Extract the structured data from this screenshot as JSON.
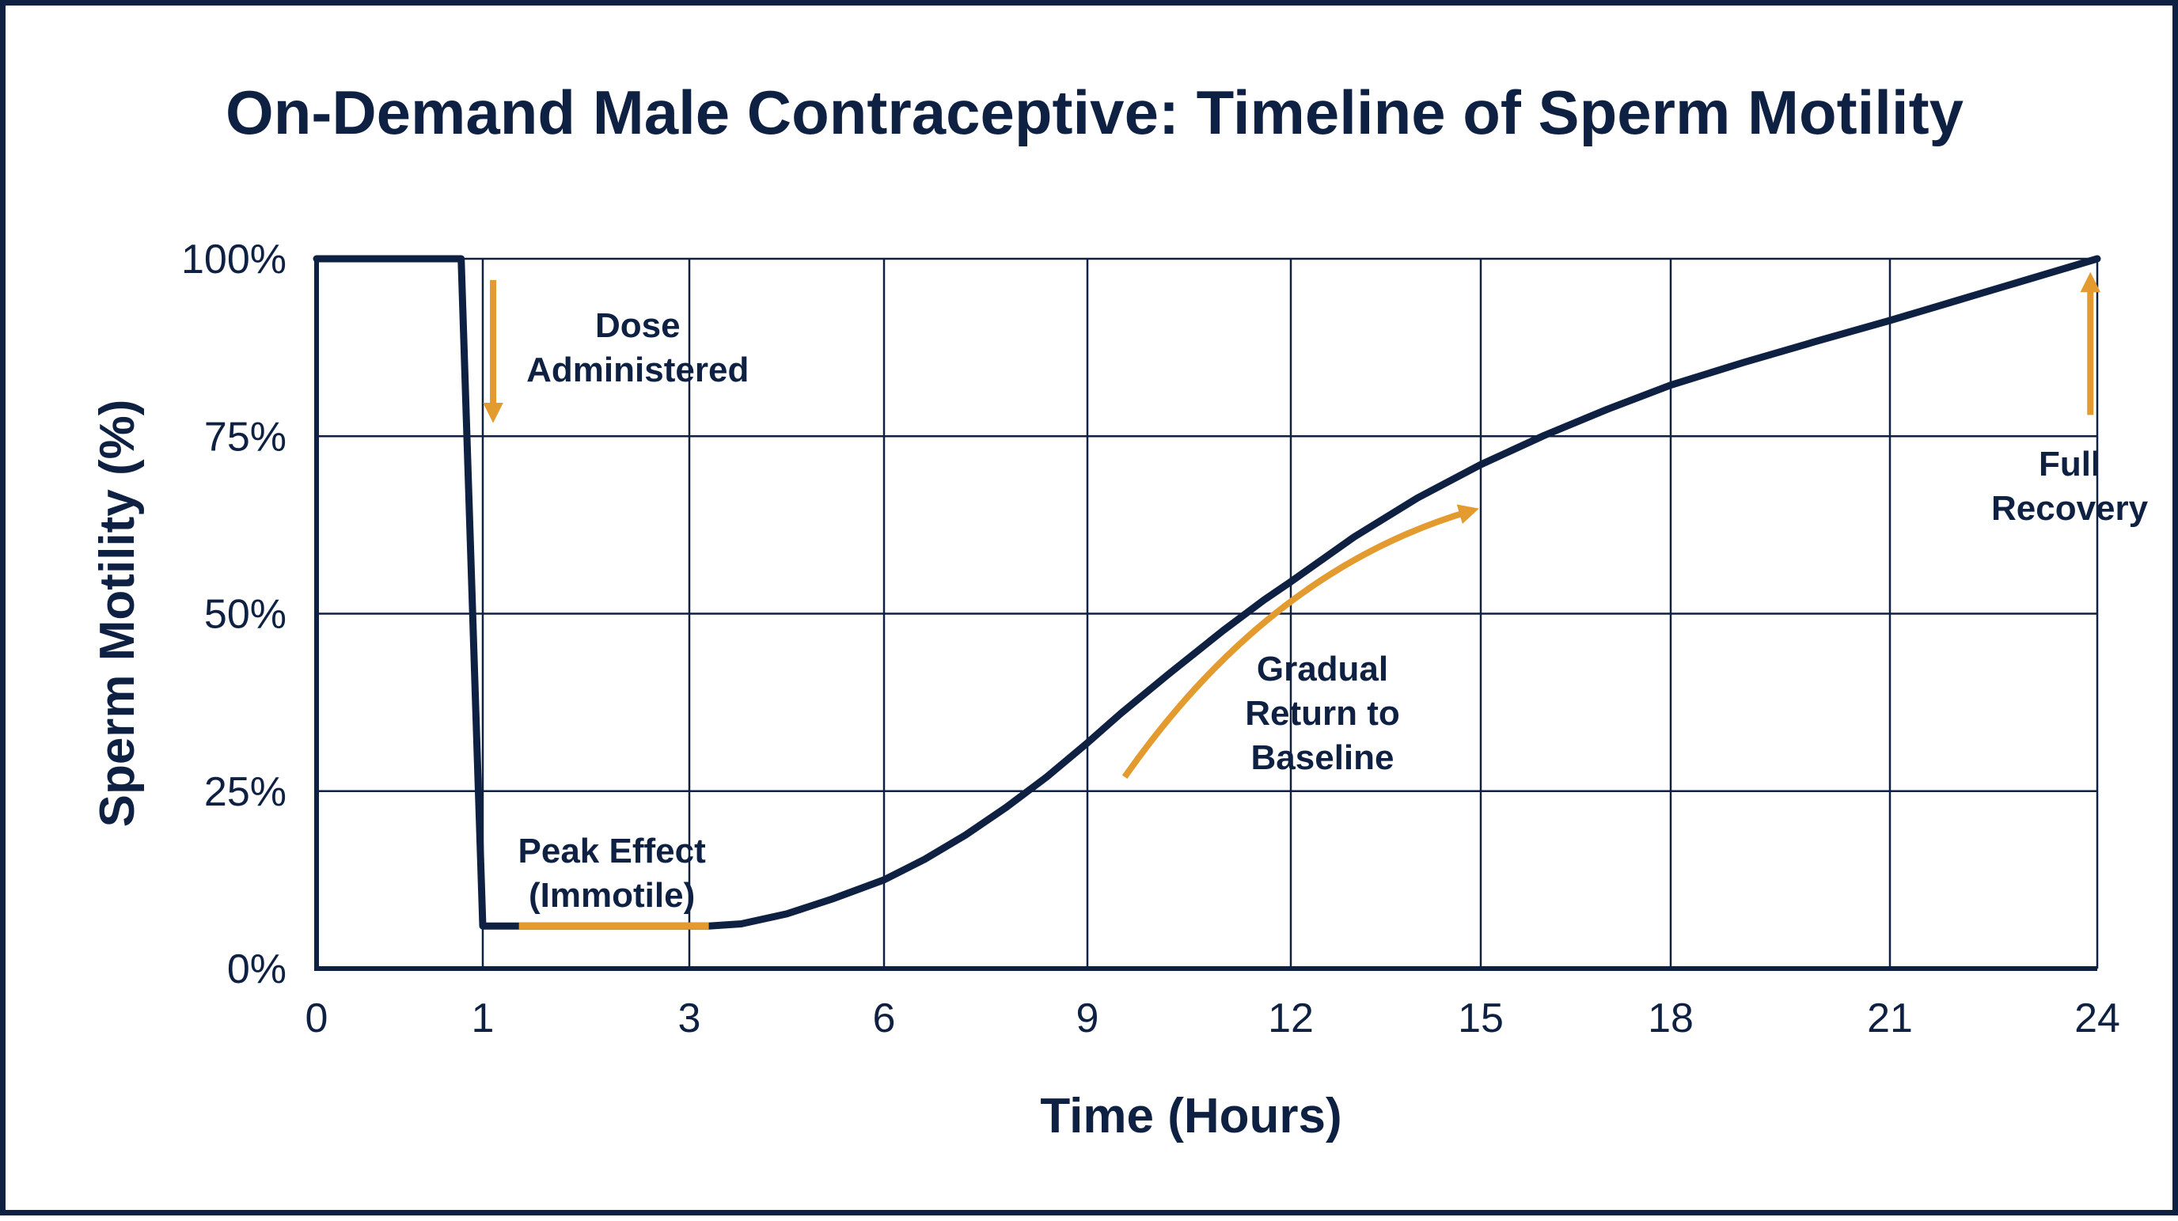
{
  "chart_data": {
    "type": "line",
    "title": "On-Demand Male Contraceptive: Timeline of Sperm Motility",
    "xlabel": "Time (Hours)",
    "ylabel": "Sperm Motility (%)",
    "x_ticks": [
      0,
      1,
      3,
      6,
      9,
      12,
      15,
      18,
      21,
      24
    ],
    "y_ticks": [
      0,
      25,
      50,
      75,
      100
    ],
    "y_tick_labels": [
      "0%",
      "25%",
      "50%",
      "75%",
      "100%"
    ],
    "ylim": [
      0,
      100
    ],
    "grid": true,
    "colors": {
      "line": "#0f2143",
      "accent": "#e39a2e",
      "grid": "#0f2143"
    },
    "series": [
      {
        "x": [
          0,
          0.87,
          1,
          1.35,
          2.5,
          3.3,
          3.8,
          4.5,
          5.2,
          6,
          6.6,
          7.2,
          7.8,
          8.4,
          9,
          9.5,
          10.2,
          11,
          11.6,
          12,
          13,
          14,
          15,
          16,
          17,
          18,
          19,
          20,
          21,
          22,
          23,
          24
        ],
        "values": [
          100,
          100,
          6,
          6,
          6,
          6,
          6.3,
          7.7,
          9.8,
          12.5,
          15.4,
          18.8,
          22.7,
          27,
          31.8,
          36,
          41.5,
          47.6,
          51.9,
          54.5,
          60.8,
          66.3,
          71,
          75.1,
          78.8,
          82.2,
          85.4,
          88.4,
          91.3,
          94.2,
          97.1,
          100
        ]
      }
    ],
    "highlight_segment": {
      "x_start": 1.35,
      "x_end": 3.3,
      "value": 6
    },
    "annotations": [
      {
        "id": "dose",
        "lines": [
          "Dose",
          "Administered"
        ],
        "x": 2.5,
        "y": 87.5,
        "arrow_direction": "down",
        "arrow_from": [
          1.1,
          97
        ],
        "arrow_to": [
          1.1,
          78
        ]
      },
      {
        "id": "peak",
        "lines": [
          "Peak Effect",
          "(Immotile)"
        ],
        "x": 2.25,
        "y": 13.5
      },
      {
        "id": "gradual",
        "lines": [
          "Gradual",
          "Return to",
          "Baseline"
        ],
        "x": 12.5,
        "y": 36,
        "arrow_direction": "up-right",
        "arrow_from": [
          9.55,
          27
        ],
        "arrow_to": [
          14.85,
          64.5
        ]
      },
      {
        "id": "recovery",
        "lines": [
          "Full",
          "Recovery"
        ],
        "x": 23.6,
        "y": 68,
        "arrow_direction": "up",
        "arrow_from": [
          23.9,
          78
        ],
        "arrow_to": [
          23.9,
          97
        ]
      }
    ]
  }
}
